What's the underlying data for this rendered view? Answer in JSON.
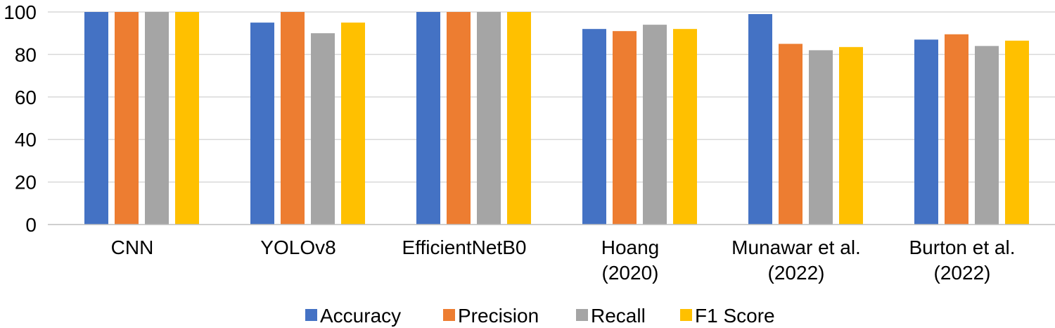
{
  "chart_data": {
    "type": "bar",
    "title": "",
    "xlabel": "",
    "ylabel": "",
    "ylim": [
      0,
      100
    ],
    "yticks": [
      "0",
      "20",
      "40",
      "60",
      "80",
      "100"
    ],
    "grid": true,
    "legend_position": "bottom",
    "categories": [
      [
        "CNN"
      ],
      [
        "YOLOv8"
      ],
      [
        "EfficientNetB0"
      ],
      [
        "Hoang",
        "(2020)"
      ],
      [
        "Munawar et al.",
        "(2022)"
      ],
      [
        "Burton et al.",
        "(2022)"
      ]
    ],
    "series": [
      {
        "name": "Accuracy",
        "color": "#4472C4",
        "values": [
          100,
          95,
          100,
          92,
          99,
          87
        ]
      },
      {
        "name": "Precision",
        "color": "#ED7D31",
        "values": [
          100,
          100,
          100,
          91,
          85,
          89.5
        ]
      },
      {
        "name": "Recall",
        "color": "#A5A5A5",
        "values": [
          100,
          90,
          100,
          94,
          82,
          84
        ]
      },
      {
        "name": "F1 Score",
        "color": "#FFC000",
        "values": [
          100,
          95,
          100,
          92,
          83.5,
          86.5
        ]
      }
    ]
  }
}
